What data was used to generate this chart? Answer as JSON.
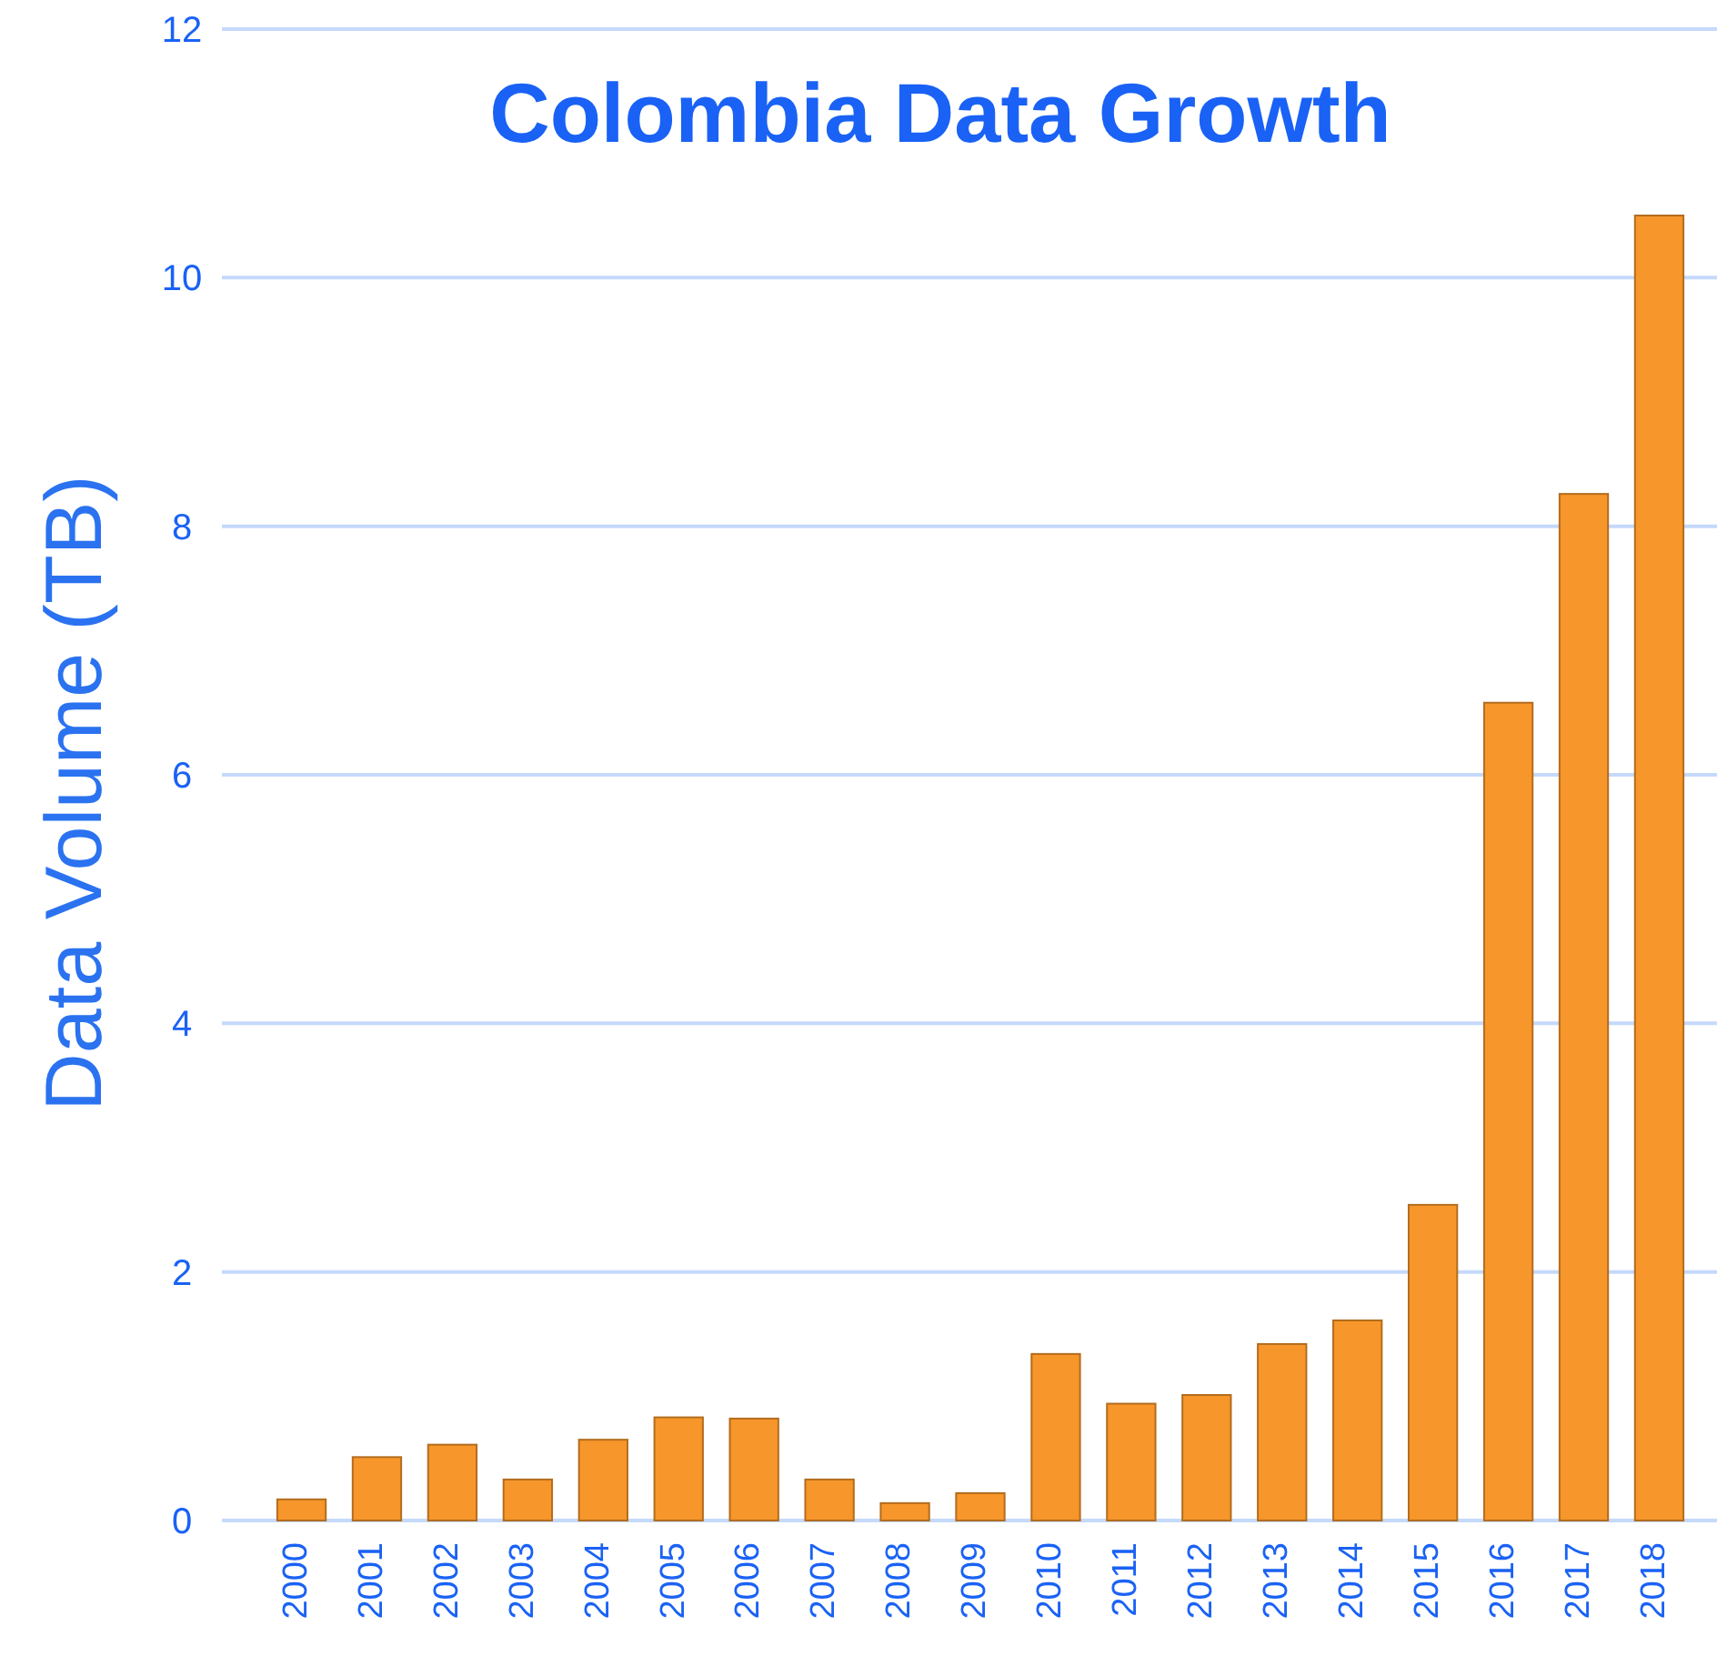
{
  "chart_data": {
    "type": "bar",
    "title": "Colombia Data Growth",
    "ylabel": "Data Volume (TB)",
    "categories": [
      "2000",
      "2001",
      "2002",
      "2003",
      "2004",
      "2005",
      "2006",
      "2007",
      "2008",
      "2009",
      "2010",
      "2011",
      "2012",
      "2013",
      "2014",
      "2015",
      "2016",
      "2017",
      "2018"
    ],
    "values": [
      0.17,
      0.51,
      0.61,
      0.33,
      0.65,
      0.83,
      0.82,
      0.33,
      0.14,
      0.22,
      1.34,
      0.94,
      1.01,
      1.42,
      1.61,
      2.54,
      6.58,
      8.26,
      10.5
    ],
    "color": "#f7962a",
    "ylim": [
      0,
      12
    ],
    "yticks": [
      0,
      2,
      4,
      6,
      8,
      10,
      12
    ],
    "grid": "y"
  }
}
